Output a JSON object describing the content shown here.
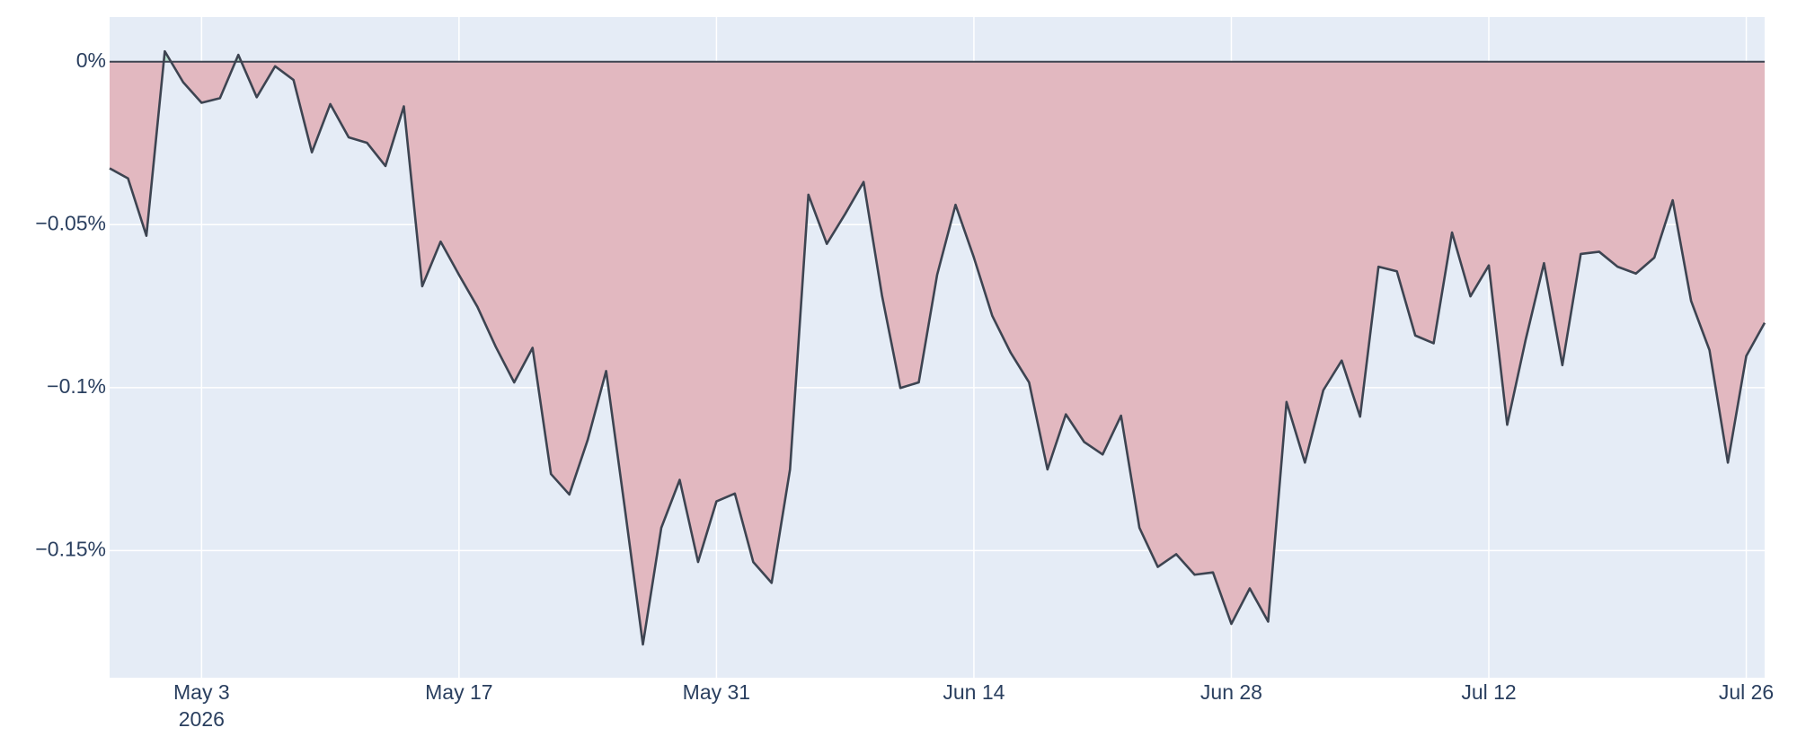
{
  "chart_data": {
    "type": "area",
    "x": [
      "2026-04-28",
      "2026-04-29",
      "2026-04-30",
      "2026-05-01",
      "2026-05-02",
      "2026-05-03",
      "2026-05-04",
      "2026-05-05",
      "2026-05-06",
      "2026-05-07",
      "2026-05-08",
      "2026-05-09",
      "2026-05-10",
      "2026-05-11",
      "2026-05-12",
      "2026-05-13",
      "2026-05-14",
      "2026-05-15",
      "2026-05-16",
      "2026-05-17",
      "2026-05-18",
      "2026-05-19",
      "2026-05-20",
      "2026-05-21",
      "2026-05-22",
      "2026-05-23",
      "2026-05-24",
      "2026-05-25",
      "2026-05-26",
      "2026-05-27",
      "2026-05-28",
      "2026-05-29",
      "2026-05-30",
      "2026-05-31",
      "2026-06-01",
      "2026-06-02",
      "2026-06-03",
      "2026-06-04",
      "2026-06-05",
      "2026-06-06",
      "2026-06-07",
      "2026-06-08",
      "2026-06-09",
      "2026-06-10",
      "2026-06-11",
      "2026-06-12",
      "2026-06-13",
      "2026-06-14",
      "2026-06-15",
      "2026-06-16",
      "2026-06-17",
      "2026-06-18",
      "2026-06-19",
      "2026-06-20",
      "2026-06-21",
      "2026-06-22",
      "2026-06-23",
      "2026-06-24",
      "2026-06-25",
      "2026-06-26",
      "2026-06-27",
      "2026-06-28",
      "2026-06-29",
      "2026-06-30",
      "2026-07-01",
      "2026-07-02",
      "2026-07-03",
      "2026-07-04",
      "2026-07-05",
      "2026-07-06",
      "2026-07-07",
      "2026-07-08",
      "2026-07-09",
      "2026-07-10",
      "2026-07-11",
      "2026-07-12",
      "2026-07-13",
      "2026-07-14",
      "2026-07-15",
      "2026-07-16",
      "2026-07-17",
      "2026-07-18",
      "2026-07-19",
      "2026-07-20",
      "2026-07-21",
      "2026-07-22",
      "2026-07-23",
      "2026-07-24",
      "2026-07-25",
      "2026-07-26",
      "2026-07-27"
    ],
    "series": [
      {
        "color": "#3d4451",
        "negative_fill": "#e2b8c0",
        "positive_fill": "#b8e0cf",
        "values": [
          -0.0327,
          -0.0358,
          -0.0534,
          0.0032,
          -0.0063,
          -0.0126,
          -0.0112,
          0.0021,
          -0.0109,
          -0.0014,
          -0.0056,
          -0.0278,
          -0.013,
          -0.0232,
          -0.0249,
          -0.032,
          -0.0137,
          -0.0689,
          -0.0552,
          -0.0654,
          -0.0752,
          -0.0875,
          -0.0984,
          -0.0878,
          -0.1265,
          -0.1328,
          -0.116,
          -0.0949,
          -0.1363,
          -0.1788,
          -0.143,
          -0.1283,
          -0.1535,
          -0.1349,
          -0.1325,
          -0.1535,
          -0.1599,
          -0.1251,
          -0.0408,
          -0.0559,
          -0.0467,
          -0.0369,
          -0.0717,
          -0.1001,
          -0.0984,
          -0.0654,
          -0.0439,
          -0.0601,
          -0.078,
          -0.0893,
          -0.0984,
          -0.1251,
          -0.1082,
          -0.1167,
          -0.1205,
          -0.1086,
          -0.143,
          -0.155,
          -0.1511,
          -0.1574,
          -0.1567,
          -0.1725,
          -0.1616,
          -0.1718,
          -0.1044,
          -0.123,
          -0.1008,
          -0.0917,
          -0.1089,
          -0.0629,
          -0.0643,
          -0.084,
          -0.0864,
          -0.0524,
          -0.072,
          -0.0625,
          -0.1114,
          -0.0854,
          -0.0618,
          -0.0931,
          -0.059,
          -0.0583,
          -0.0629,
          -0.065,
          -0.0601,
          -0.0425,
          -0.0734,
          -0.0885,
          -0.123,
          -0.0903,
          -0.0801
        ]
      }
    ],
    "xlim": [
      "2026-04-28",
      "2026-07-27"
    ],
    "xticks": [
      {
        "value": "2026-05-03",
        "label": [
          "May 3",
          "2026"
        ]
      },
      {
        "value": "2026-05-17",
        "label": [
          "May 17"
        ]
      },
      {
        "value": "2026-05-31",
        "label": [
          "May 31"
        ]
      },
      {
        "value": "2026-06-14",
        "label": [
          "Jun 14"
        ]
      },
      {
        "value": "2026-06-28",
        "label": [
          "Jun 28"
        ]
      },
      {
        "value": "2026-07-12",
        "label": [
          "Jul 12"
        ]
      },
      {
        "value": "2026-07-26",
        "label": [
          "Jul 26"
        ]
      }
    ],
    "ylim": [
      -0.189,
      0.0137
    ],
    "yticks": [
      {
        "value": 0,
        "label": "0%"
      },
      {
        "value": -0.05,
        "label": "−0.05%"
      },
      {
        "value": -0.1,
        "label": "−0.1%"
      },
      {
        "value": -0.15,
        "label": "−0.15%"
      }
    ],
    "grid": true,
    "background": "#e5ecf6",
    "zero_line_color": "#3d4451"
  }
}
